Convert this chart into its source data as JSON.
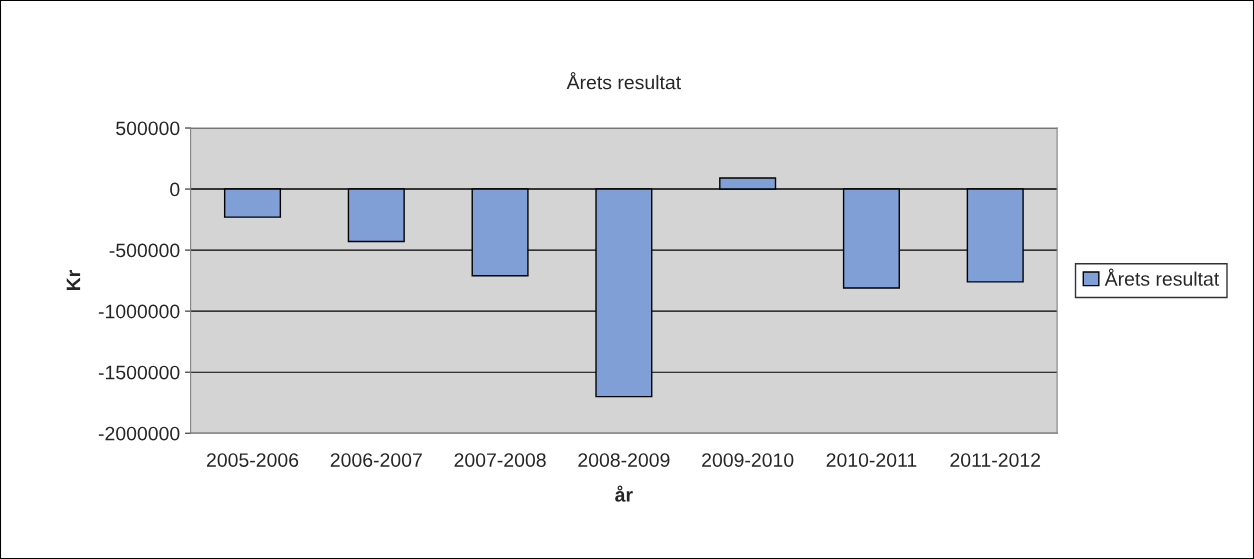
{
  "chart_data": {
    "type": "bar",
    "title": "Årets resultat",
    "xlabel": "år",
    "ylabel": "Kr",
    "categories": [
      "2005-2006",
      "2006-2007",
      "2007-2008",
      "2008-2009",
      "2009-2010",
      "2010-2011",
      "2011-2012"
    ],
    "series": [
      {
        "name": "Årets resultat",
        "color": "#7f9fd6",
        "values": [
          -230000,
          -430000,
          -710000,
          -1700000,
          90000,
          -810000,
          -760000
        ]
      }
    ],
    "ylim": [
      -2000000,
      500000
    ],
    "yticks": [
      -2000000,
      -1500000,
      -1000000,
      -500000,
      0,
      500000
    ],
    "grid": "y",
    "legend": "right"
  }
}
